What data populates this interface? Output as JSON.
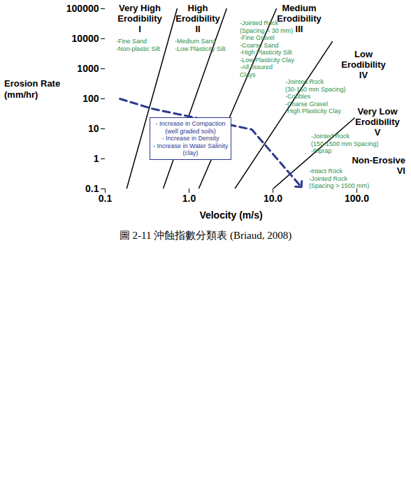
{
  "chart_data": {
    "type": "line",
    "caption": "圖 2-11 沖蝕指數分類表 (Briaud, 2008)",
    "x_label": "Velocity (m/s)",
    "y_label": "Erosion Rate (mm/hr)",
    "log": true,
    "grid": false,
    "xlim": [
      0.1,
      100
    ],
    "ylim": [
      0.1,
      100000
    ],
    "xticks": [
      {
        "value": 0.1,
        "label": "0.1"
      },
      {
        "value": 1,
        "label": "1.0"
      },
      {
        "value": 10,
        "label": "10.0"
      },
      {
        "value": 100,
        "label": "100.0"
      }
    ],
    "yticks": [
      0.1,
      1,
      10,
      100,
      1000,
      10000,
      100000
    ],
    "boundaries": [
      {
        "color": "#000000",
        "x": [
          0.18,
          0.72
        ],
        "y": [
          0.1,
          100000
        ]
      },
      {
        "color": "#000000",
        "x": [
          0.49,
          2.8
        ],
        "y": [
          0.1,
          100000
        ]
      },
      {
        "color": "#000000",
        "x": [
          1.3,
          11
        ],
        "y": [
          0.1,
          100000
        ]
      },
      {
        "color": "#000000",
        "x": [
          3.5,
          51
        ],
        "y": [
          0.1,
          8000
        ]
      },
      {
        "color": "#000000",
        "x": [
          10,
          94
        ],
        "y": [
          0.1,
          23
        ]
      }
    ],
    "zones": [
      {
        "label": [
          "Very High",
          "Erodibility",
          "I"
        ],
        "materials": [
          "-Fine Sand",
          "-Non-plastic Silt"
        ]
      },
      {
        "label": [
          "High",
          "Erodibility",
          "II"
        ],
        "materials": [
          "-Medium Sand",
          "-Low Plasticity Silt"
        ]
      },
      {
        "label": [
          "Medium",
          "Erodibility",
          "III"
        ],
        "materials": [
          "-Jointed Rock",
          "(Spacing < 30 mm)",
          "-Fine Gravel",
          "-Coarse Sand",
          "-High Plasticity Silt",
          "-Low Plasticity Clay",
          "-All fissured",
          "Clays"
        ]
      },
      {
        "label": [
          "Low",
          "Erodibility",
          "IV"
        ],
        "materials": [
          "-Jointed Rock",
          "(30-150 mm Spacing)",
          "-Cobbles",
          "-Coarse Gravel",
          "-High Plasticity Clay"
        ]
      },
      {
        "label": [
          "Very Low",
          "Erodibility",
          "V"
        ],
        "materials": [
          "-Jointed Rock",
          "(150-1500 mm Spacing)",
          "-Riprap"
        ]
      },
      {
        "label": [
          "Non-Erosive",
          "VI"
        ],
        "materials": [
          "-Intact Rock",
          "-Jointed Rock",
          "(Spacing > 1500 mm)"
        ]
      }
    ],
    "materials_color": "#2a8f4e",
    "trend_arrow": {
      "color": "#2b3990",
      "line_style": "dashed",
      "x": [
        0.15,
        0.36,
        5.6,
        21
      ],
      "y": [
        100,
        47,
        9.5,
        0.13
      ]
    },
    "annotation_box": {
      "color": "#2b3990",
      "lines": [
        "- Increase in Compaction",
        "(well graded soils)",
        "- Increase in Density",
        "- Increase in Water Salinity",
        "(clay)"
      ]
    }
  }
}
